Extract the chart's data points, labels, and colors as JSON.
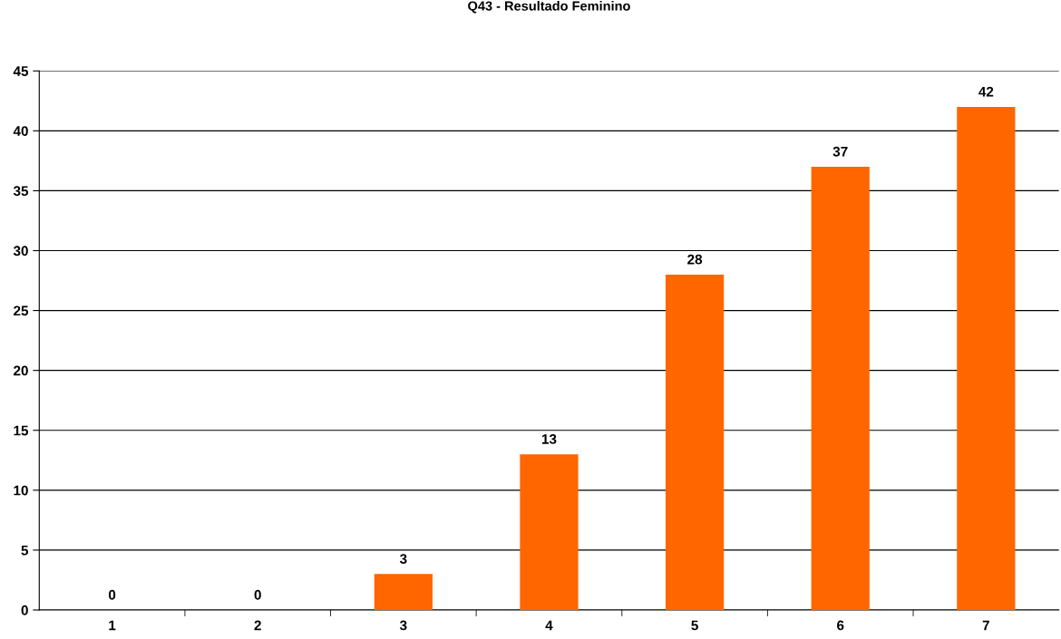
{
  "chart_data": {
    "type": "bar",
    "title": "Q43 - Resultado Feminino",
    "categories": [
      "1",
      "2",
      "3",
      "4",
      "5",
      "6",
      "7"
    ],
    "values": [
      0,
      0,
      3,
      13,
      28,
      37,
      42
    ],
    "color": "#ff6600",
    "ylim": [
      0,
      45
    ],
    "yticks": [
      0,
      5,
      10,
      15,
      20,
      25,
      30,
      35,
      40,
      45
    ],
    "grid": "y",
    "data_labels": true
  }
}
